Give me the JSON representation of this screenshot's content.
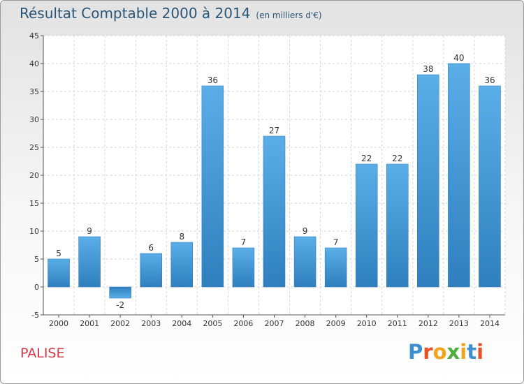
{
  "header": {
    "title": "Résultat Comptable 2000 à 2014",
    "subtitle": "(en milliers d'€)"
  },
  "commune": "PALISE",
  "logo": {
    "text": "Proxiti",
    "letters": [
      "P",
      "r",
      "o",
      "x",
      "i",
      "t",
      "i"
    ],
    "colors": [
      "#3e8fd1",
      "#e8502c",
      "#f2a21b",
      "#4bad3a",
      "#f2a21b",
      "#3e8fd1",
      "#e8502c"
    ]
  },
  "chart_data": {
    "type": "bar",
    "title": "Résultat Comptable 2000 à 2014",
    "subtitle": "(en milliers d'€)",
    "categories": [
      "2000",
      "2001",
      "2002",
      "2003",
      "2004",
      "2005",
      "2006",
      "2007",
      "2008",
      "2009",
      "2010",
      "2011",
      "2012",
      "2013",
      "2014"
    ],
    "values": [
      5,
      9,
      -2,
      6,
      8,
      36,
      7,
      27,
      9,
      7,
      22,
      22,
      38,
      40,
      36
    ],
    "ylim": [
      -5,
      45
    ],
    "yticks": [
      -5,
      0,
      5,
      10,
      15,
      20,
      25,
      30,
      35,
      40,
      45
    ],
    "grid": true,
    "bar_color": "#3a93d6",
    "xlabel": "",
    "ylabel": ""
  }
}
